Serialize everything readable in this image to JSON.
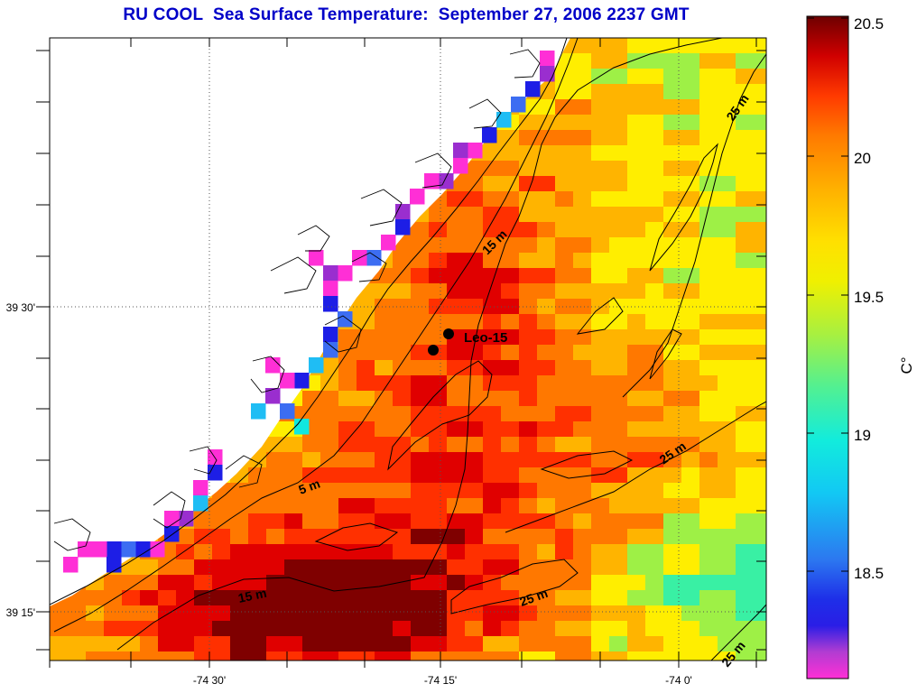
{
  "title": "RU COOL  Sea Surface Temperature:  September 27, 2006 2237 GMT",
  "map": {
    "lon_ticks": [
      "-74 30'",
      "-74 15'",
      "-74 0'"
    ],
    "lat_ticks": [
      "39 30'",
      "39 15'"
    ],
    "contour_labels": [
      "5 m",
      "15 m",
      "15 m",
      "25 m",
      "25 m",
      "25 m",
      "25 m"
    ],
    "station": {
      "name": "Leo-15"
    }
  },
  "colorbar": {
    "ticks": [
      "20.5",
      "20",
      "19.5",
      "19",
      "18.5"
    ],
    "unit": "C°",
    "colors": [
      "#ff2fd6",
      "#9a2ecf",
      "#1d1ee6",
      "#3c6df2",
      "#1fbdf4",
      "#10e8e0",
      "#39f0a4",
      "#9ef046",
      "#ffee00",
      "#ffb400",
      "#ff7800",
      "#ff3000",
      "#e00000",
      "#7f0000"
    ]
  }
}
